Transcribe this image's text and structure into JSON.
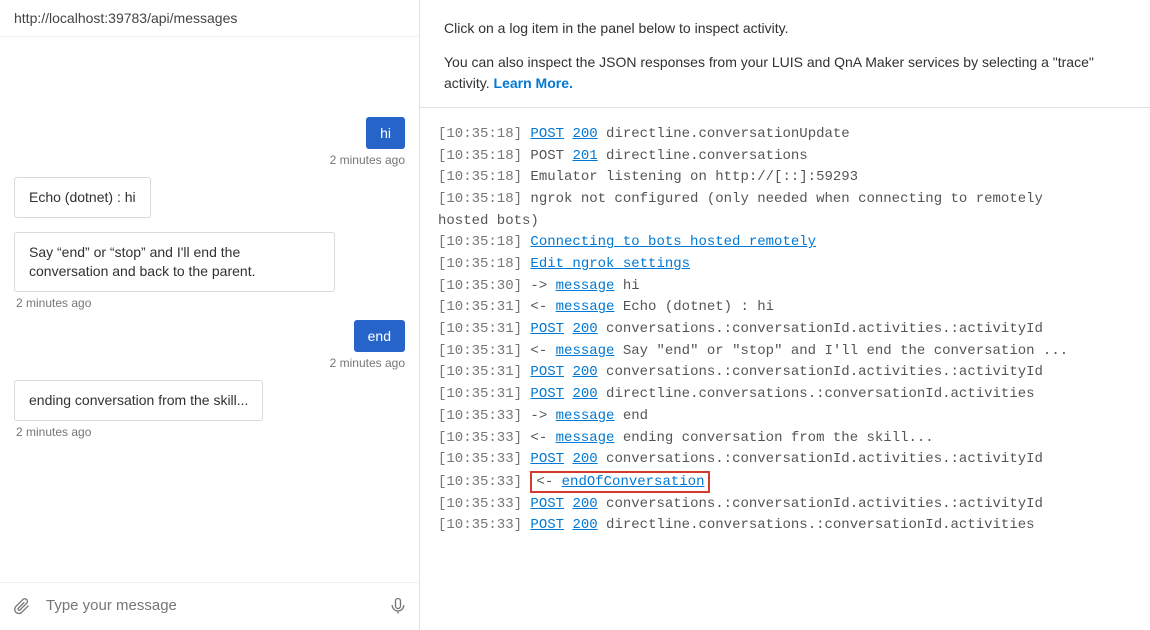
{
  "urlBar": {
    "text": "http://localhost:39783/api/messages"
  },
  "chat": {
    "inputPlaceholder": "Type your message",
    "messages": [
      {
        "side": "user",
        "text": "hi",
        "ts": "2 minutes ago"
      },
      {
        "side": "bot",
        "text": "Echo (dotnet) : hi",
        "ts": null
      },
      {
        "side": "bot",
        "text": "Say “end” or “stop” and I'll end the conversation and back to the parent.",
        "ts": "2 minutes ago"
      },
      {
        "side": "user",
        "text": "end",
        "ts": "2 minutes ago"
      },
      {
        "side": "bot",
        "text": "ending conversation from the skill...",
        "ts": "2 minutes ago"
      }
    ]
  },
  "inspector": {
    "line1": "Click on a log item in the panel below to inspect activity.",
    "line2a": "You can also inspect the JSON responses from your LUIS and QnA Maker services by selecting a \"trace\" activity. ",
    "learnMore": "Learn More."
  },
  "log": {
    "lines": [
      {
        "ts": "[10:35:18]",
        "segs": [
          {
            "t": "link",
            "v": "POST"
          },
          {
            "t": "sp"
          },
          {
            "t": "link",
            "v": "200"
          },
          {
            "t": "txt",
            "v": " directline.conversationUpdate"
          }
        ]
      },
      {
        "ts": "[10:35:18]",
        "segs": [
          {
            "t": "txt",
            "v": "POST "
          },
          {
            "t": "link",
            "v": "201"
          },
          {
            "t": "txt",
            "v": " directline.conversations"
          }
        ]
      },
      {
        "ts": "[10:35:18]",
        "segs": [
          {
            "t": "txt",
            "v": "Emulator listening on http://[::]:59293"
          }
        ]
      },
      {
        "ts": "[10:35:18]",
        "segs": [
          {
            "t": "txt",
            "v": "ngrok not configured (only needed when connecting to remotely"
          }
        ]
      },
      {
        "ts": "",
        "segs": [
          {
            "t": "txt",
            "v": "hosted bots)"
          }
        ],
        "noTs": true
      },
      {
        "ts": "[10:35:18]",
        "segs": [
          {
            "t": "link",
            "v": "Connecting to bots hosted remotely"
          }
        ]
      },
      {
        "ts": "[10:35:18]",
        "segs": [
          {
            "t": "link",
            "v": "Edit ngrok settings"
          }
        ]
      },
      {
        "ts": "[10:35:30]",
        "segs": [
          {
            "t": "txt",
            "v": "-> "
          },
          {
            "t": "link",
            "v": "message"
          },
          {
            "t": "txt",
            "v": " hi"
          }
        ]
      },
      {
        "ts": "[10:35:31]",
        "segs": [
          {
            "t": "txt",
            "v": "<- "
          },
          {
            "t": "link",
            "v": "message"
          },
          {
            "t": "txt",
            "v": " Echo (dotnet) : hi"
          }
        ]
      },
      {
        "ts": "[10:35:31]",
        "segs": [
          {
            "t": "link",
            "v": "POST"
          },
          {
            "t": "sp"
          },
          {
            "t": "link",
            "v": "200"
          },
          {
            "t": "txt",
            "v": " conversations.:conversationId.activities.:activityId"
          }
        ]
      },
      {
        "ts": "[10:35:31]",
        "segs": [
          {
            "t": "txt",
            "v": "<- "
          },
          {
            "t": "link",
            "v": "message"
          },
          {
            "t": "txt",
            "v": " Say \"end\" or \"stop\" and I'll end the conversation ..."
          }
        ]
      },
      {
        "ts": "[10:35:31]",
        "segs": [
          {
            "t": "link",
            "v": "POST"
          },
          {
            "t": "sp"
          },
          {
            "t": "link",
            "v": "200"
          },
          {
            "t": "txt",
            "v": " conversations.:conversationId.activities.:activityId"
          }
        ]
      },
      {
        "ts": "[10:35:31]",
        "segs": [
          {
            "t": "link",
            "v": "POST"
          },
          {
            "t": "sp"
          },
          {
            "t": "link",
            "v": "200"
          },
          {
            "t": "txt",
            "v": " directline.conversations.:conversationId.activities"
          }
        ]
      },
      {
        "ts": "[10:35:33]",
        "segs": [
          {
            "t": "txt",
            "v": "-> "
          },
          {
            "t": "link",
            "v": "message"
          },
          {
            "t": "txt",
            "v": " end"
          }
        ]
      },
      {
        "ts": "[10:35:33]",
        "segs": [
          {
            "t": "txt",
            "v": "<- "
          },
          {
            "t": "link",
            "v": "message"
          },
          {
            "t": "txt",
            "v": " ending conversation from the skill..."
          }
        ]
      },
      {
        "ts": "[10:35:33]",
        "segs": [
          {
            "t": "link",
            "v": "POST"
          },
          {
            "t": "sp"
          },
          {
            "t": "link",
            "v": "200"
          },
          {
            "t": "txt",
            "v": " conversations.:conversationId.activities.:activityId"
          }
        ]
      },
      {
        "ts": "[10:35:33]",
        "highlight": true,
        "segs": [
          {
            "t": "txt",
            "v": "<- "
          },
          {
            "t": "link",
            "v": "endOfConversation"
          }
        ]
      },
      {
        "ts": "[10:35:33]",
        "segs": [
          {
            "t": "link",
            "v": "POST"
          },
          {
            "t": "sp"
          },
          {
            "t": "link",
            "v": "200"
          },
          {
            "t": "txt",
            "v": " conversations.:conversationId.activities.:activityId"
          }
        ]
      },
      {
        "ts": "[10:35:33]",
        "segs": [
          {
            "t": "link",
            "v": "POST"
          },
          {
            "t": "sp"
          },
          {
            "t": "link",
            "v": "200"
          },
          {
            "t": "txt",
            "v": " directline.conversations.:conversationId.activities"
          }
        ]
      }
    ]
  },
  "colors": {
    "userBubble": "#2664c9",
    "link": "#0078d4",
    "highlightBorder": "#d23b2e",
    "border": "#e1e1e1",
    "muted": "#767676"
  }
}
